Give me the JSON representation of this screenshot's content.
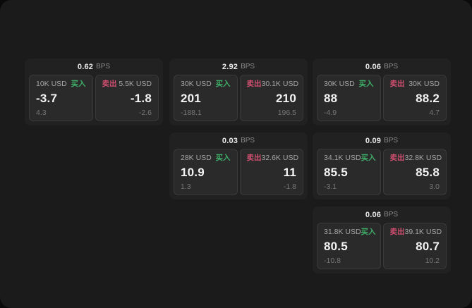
{
  "window": {
    "outer_background": "#0a0a0a",
    "surface_background": "#1b1b1c"
  },
  "labels": {
    "bps_unit": "BPS",
    "buy": "买入",
    "sell": "卖出"
  },
  "colors": {
    "buy": "#3fae68",
    "sell": "#d14f70",
    "card": "#212122",
    "panel": "#2a2a2b"
  },
  "cards": [
    {
      "bps": "0.62",
      "buy": {
        "size": "10K USD",
        "value": "-3.7",
        "sub": "4.3"
      },
      "sell": {
        "size": "5.5K USD",
        "value": "-1.8",
        "sub": "-2.6"
      }
    },
    {
      "bps": "2.92",
      "buy": {
        "size": "30K USD",
        "value": "201",
        "sub": "-188.1"
      },
      "sell": {
        "size": "30.1K USD",
        "value": "210",
        "sub": "196.5"
      }
    },
    {
      "bps": "0.03",
      "buy": {
        "size": "28K USD",
        "value": "10.9",
        "sub": "1.3"
      },
      "sell": {
        "size": "32.6K USD",
        "value": "11",
        "sub": "-1.8"
      }
    },
    {
      "bps": "0.06",
      "buy": {
        "size": "30K USD",
        "value": "88",
        "sub": "-4.9"
      },
      "sell": {
        "size": "30K USD",
        "value": "88.2",
        "sub": "4.7"
      }
    },
    {
      "bps": "0.09",
      "buy": {
        "size": "34.1K USD",
        "value": "85.5",
        "sub": "-3.1"
      },
      "sell": {
        "size": "32.8K USD",
        "value": "85.8",
        "sub": "3.0"
      }
    },
    {
      "bps": "0.06",
      "buy": {
        "size": "31.8K USD",
        "value": "80.5",
        "sub": "-10.8"
      },
      "sell": {
        "size": "39.1K USD",
        "value": "80.7",
        "sub": "10.2"
      }
    }
  ]
}
